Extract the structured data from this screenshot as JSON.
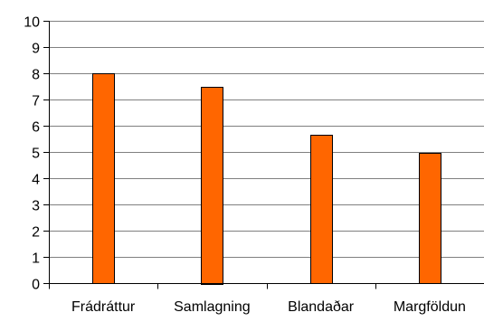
{
  "chart_data": {
    "type": "bar",
    "title": "",
    "xlabel": "",
    "ylabel": "",
    "categories": [
      "Frádráttur",
      "Samlagning",
      "Blandaðar",
      "Margföldun"
    ],
    "values": [
      8,
      7.5,
      5.65,
      4.97
    ],
    "ylim": [
      0,
      10
    ],
    "yticks": [
      "0",
      "1",
      "2",
      "3",
      "4",
      "5",
      "6",
      "7",
      "8",
      "9",
      "10"
    ],
    "grid": true,
    "legend": "none",
    "bar_color": "#ff6600",
    "bar_outline": "#000000"
  }
}
